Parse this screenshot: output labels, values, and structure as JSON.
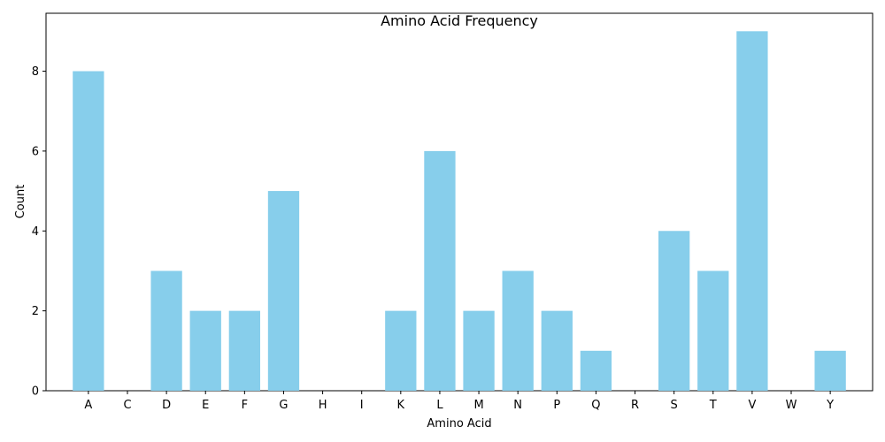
{
  "chart_data": {
    "type": "bar",
    "title": "Amino Acid Frequency",
    "xlabel": "Amino Acid",
    "ylabel": "Count",
    "categories": [
      "A",
      "C",
      "D",
      "E",
      "F",
      "G",
      "H",
      "I",
      "K",
      "L",
      "M",
      "N",
      "P",
      "Q",
      "R",
      "S",
      "T",
      "V",
      "W",
      "Y"
    ],
    "values": [
      8,
      0,
      3,
      2,
      2,
      5,
      0,
      0,
      2,
      6,
      2,
      3,
      2,
      1,
      0,
      4,
      3,
      9,
      0,
      1
    ],
    "ylim": [
      0,
      9.45
    ],
    "yticks": [
      0,
      2,
      4,
      6,
      8
    ],
    "grid": false,
    "legend": "none",
    "bar_color": "#87CEEB"
  }
}
